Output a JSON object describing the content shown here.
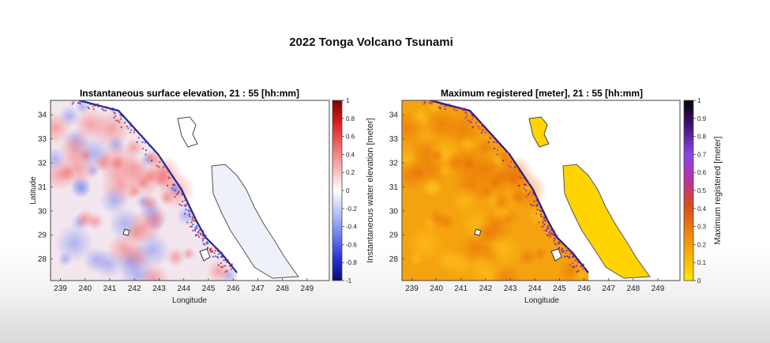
{
  "title": "2022 Tonga Volcano Tsunami",
  "colors": {
    "sea_red": "#f26b6b",
    "sea_blue": "#6b7ff2",
    "sea_orange": "#f4a20f",
    "land": "#ffffff",
    "max_land_fill": "#ffd400"
  },
  "chart_data": [
    {
      "type": "heatmap",
      "title": "Instantaneous surface elevation, 21 : 55 [hh:mm]",
      "xlabel": "Longitude",
      "ylabel": "Latitude",
      "xlim": [
        238.6,
        249.9
      ],
      "ylim": [
        27.1,
        34.6
      ],
      "xticks": [
        "239",
        "240",
        "241",
        "242",
        "243",
        "244",
        "245",
        "246",
        "247",
        "248",
        "249"
      ],
      "yticks": [
        "28",
        "29",
        "30",
        "31",
        "32",
        "33",
        "34"
      ],
      "colorbar": {
        "label": "Instantaneous water elevation [meter]",
        "ticks": [
          "-1",
          "-0.8",
          "-0.6",
          "-0.4",
          "-0.2",
          "0",
          "0.2",
          "0.4",
          "0.6",
          "0.8",
          "1"
        ],
        "range": [
          -1,
          1
        ],
        "colormap": "blue-white-red"
      }
    },
    {
      "type": "heatmap",
      "title": "Maximum registered [meter], 21 : 55 [hh:mm]",
      "xlabel": "Longitude",
      "ylabel": "",
      "xlim": [
        238.6,
        249.9
      ],
      "ylim": [
        27.1,
        34.6
      ],
      "xticks": [
        "239",
        "240",
        "241",
        "242",
        "243",
        "244",
        "245",
        "246",
        "247",
        "248",
        "249"
      ],
      "yticks": [
        "28",
        "29",
        "30",
        "31",
        "32",
        "33",
        "34"
      ],
      "colorbar": {
        "label": "Maximum registered [meter]",
        "ticks": [
          "0",
          "0.1",
          "0.2",
          "0.3",
          "0.4",
          "0.5",
          "0.6",
          "0.7",
          "0.8",
          "0.9",
          "1"
        ],
        "range": [
          0,
          1
        ],
        "colormap": "yellow-orange-purple-black"
      }
    }
  ]
}
